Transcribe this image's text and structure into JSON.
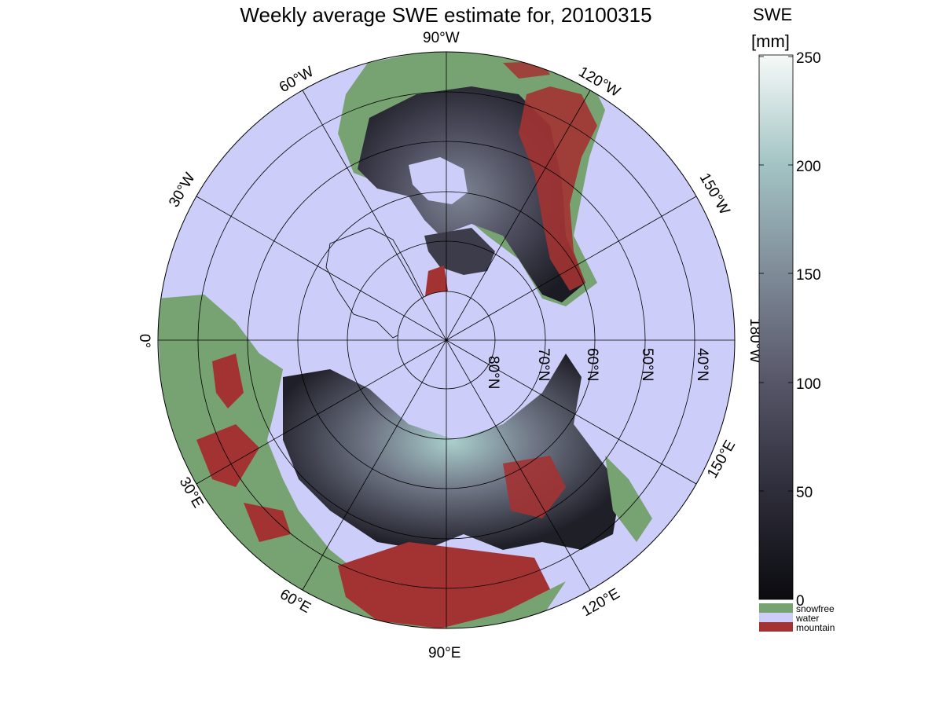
{
  "title": "Weekly average SWE estimate for, 20100315",
  "colorbar": {
    "title": "SWE",
    "unit": "[mm]",
    "ticks": [
      "250",
      "200",
      "150",
      "100",
      "50",
      "0"
    ],
    "range": [
      0,
      250
    ],
    "gradient": [
      "#0b0b10",
      "#2e2d3a",
      "#575669",
      "#7f8b98",
      "#a3c4c4",
      "#f6faf8"
    ]
  },
  "legend": [
    {
      "label": "snowfree",
      "color": "#77a272"
    },
    {
      "label": "water",
      "color": "#cdcdf9"
    },
    {
      "label": "mountain",
      "color": "#a33333"
    }
  ],
  "meridian_labels": [
    "90°W",
    "120°W",
    "150°W",
    "180°W",
    "150°E",
    "120°E",
    "90°E",
    "60°E",
    "30°E",
    "0°",
    "30°W",
    "60°W"
  ],
  "parallel_labels": [
    "40°N",
    "50°N",
    "60°N",
    "70°N",
    "80°N"
  ],
  "colors": {
    "ocean": "#cdcdf9",
    "snowfree": "#77a272",
    "mountain": "#a33333",
    "snow_dark": "#1a1a22",
    "snow_light": "#a9cfcc"
  }
}
